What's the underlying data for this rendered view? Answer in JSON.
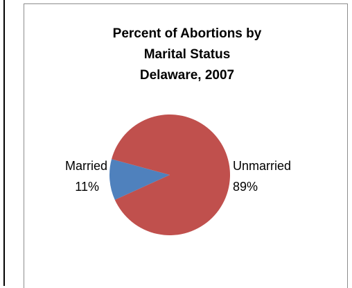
{
  "chart_data": {
    "type": "pie",
    "title": "Percent of Abortions by Marital Status",
    "subtitle": "Delaware, 2007",
    "categories": [
      "Married",
      "Unmarried"
    ],
    "values": [
      11,
      89
    ],
    "value_labels": [
      "11%",
      "89%"
    ],
    "colors": [
      "#4f81bd",
      "#c0504d"
    ]
  }
}
